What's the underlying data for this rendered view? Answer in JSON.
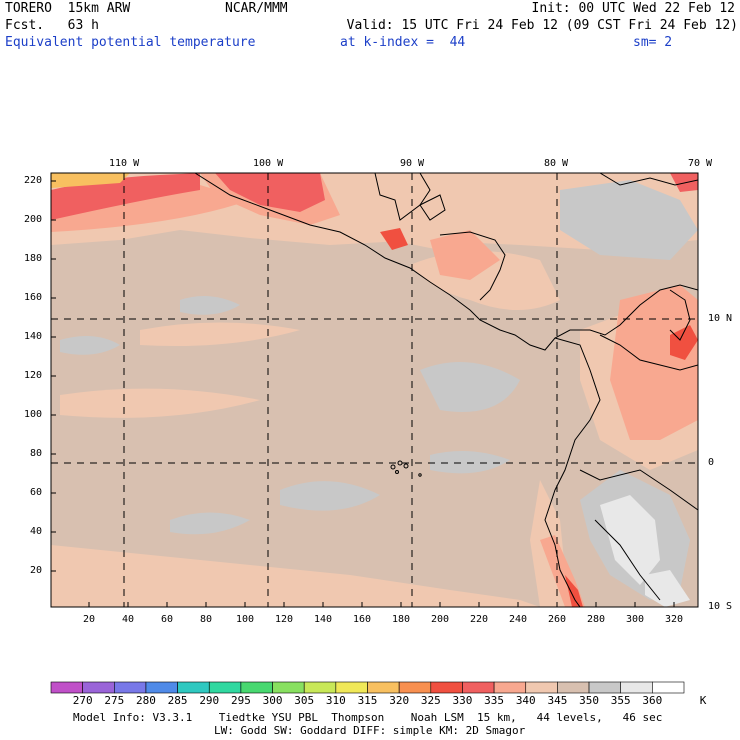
{
  "header": {
    "model": "TORERO  15km ARW",
    "center": "NCAR/MMM",
    "init": "Init: 00 UTC Wed 22 Feb 12",
    "fcst": "Fcst.   63 h",
    "valid": "Valid: 15 UTC Fri 24 Feb 12 (09 CST Fri 24 Feb 12)",
    "field": "Equivalent potential temperature",
    "level": "at k-index =  44",
    "smooth": "sm= 2"
  },
  "map": {
    "lon_labels": [
      "110 W",
      "100 W",
      "90 W",
      "80 W",
      "70 W"
    ],
    "lat_labels": [
      "10 N",
      "0",
      "10 S"
    ],
    "y_ticks": [
      "220",
      "200",
      "180",
      "160",
      "140",
      "120",
      "100",
      "80",
      "60",
      "40",
      "20"
    ],
    "x_ticks": [
      "20",
      "40",
      "60",
      "80",
      "100",
      "120",
      "140",
      "160",
      "180",
      "200",
      "220",
      "240",
      "260",
      "280",
      "300",
      "320"
    ]
  },
  "colorbar": {
    "labels": [
      "270",
      "275",
      "280",
      "285",
      "290",
      "295",
      "300",
      "305",
      "310",
      "315",
      "320",
      "325",
      "330",
      "335",
      "340",
      "345",
      "350",
      "355",
      "360"
    ],
    "unit": "K",
    "colors": [
      "#c050c8",
      "#9a64d8",
      "#7878e8",
      "#4f8ae8",
      "#2fc8c0",
      "#30d8a0",
      "#48d870",
      "#88e060",
      "#c8e858",
      "#f0e858",
      "#f8c060",
      "#f89050",
      "#f05040",
      "#f06060",
      "#f8a890",
      "#f0c8b0",
      "#d8c0b0",
      "#c8c8c8",
      "#e8e8e8",
      "#ffffff"
    ]
  },
  "footer": {
    "line1": "Model Info: V3.3.1    Tiedtke YSU PBL  Thompson    Noah LSM  15 km,   44 levels,   46 sec",
    "line2": "LW: Godd SW: Goddard DIFF: simple KM: 2D Smagor"
  }
}
